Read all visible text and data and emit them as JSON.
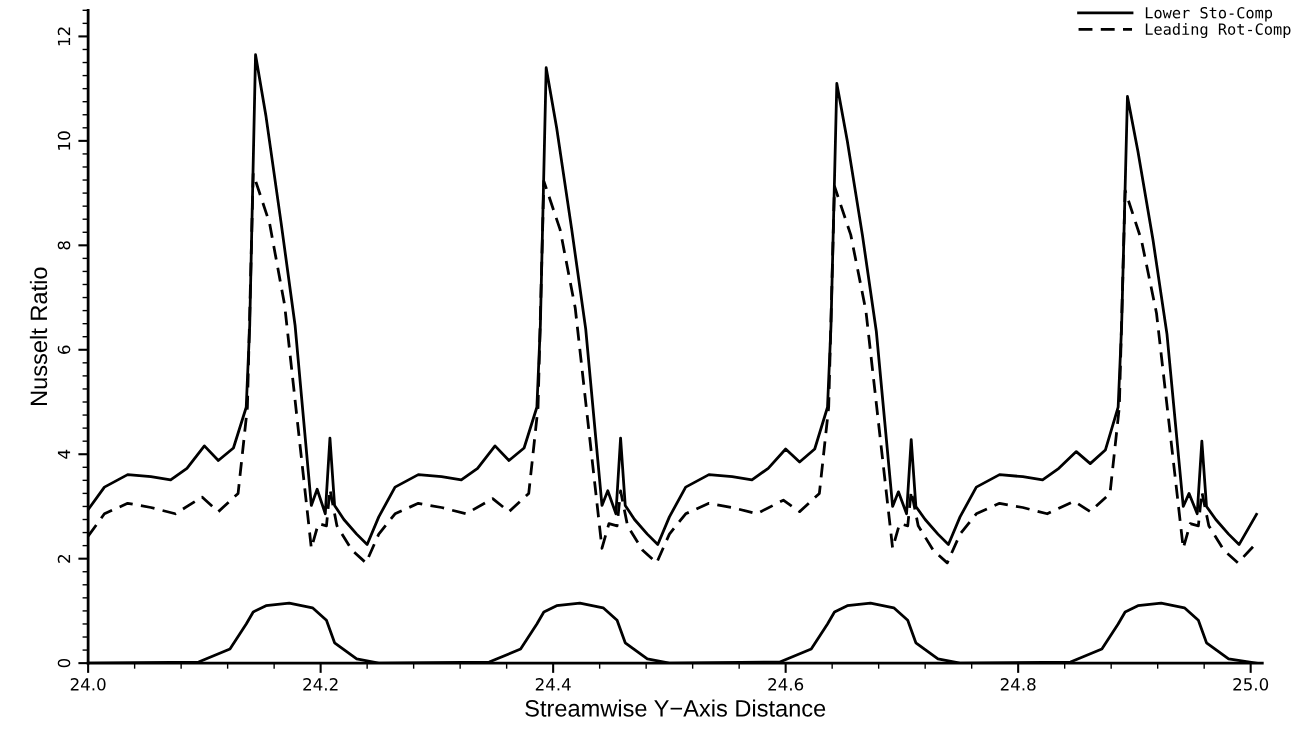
{
  "chart_data": {
    "type": "line",
    "xlabel": "Streamwise Y−Axis Distance",
    "ylabel": "Nusselt Ratio",
    "xlim": [
      24.0,
      25.01
    ],
    "xticks": [
      {
        "value": 24.0,
        "label": "24.0"
      },
      {
        "value": 24.2,
        "label": "24.2"
      },
      {
        "value": 24.4,
        "label": "24.4"
      },
      {
        "value": 24.6,
        "label": "24.6"
      },
      {
        "value": 24.8,
        "label": "24.8"
      },
      {
        "value": 25.0,
        "label": "25.0"
      }
    ],
    "ylim": [
      0,
      12.5
    ],
    "yticks": [
      0,
      2,
      4,
      6,
      8,
      10,
      12
    ],
    "grid": false,
    "legend": "top right",
    "marker": "none",
    "series": [
      {
        "name": "Lower Sto-Comp",
        "color": "#000000",
        "line_style": "solid",
        "x": [
          24.0,
          24.014,
          24.034,
          24.054,
          24.071,
          24.085,
          24.1,
          24.112,
          24.125,
          24.136,
          24.139,
          24.144,
          24.153,
          24.166,
          24.178,
          24.192,
          24.197,
          24.204,
          24.208,
          24.212,
          24.22,
          24.231,
          24.24,
          24.25,
          24.264,
          24.284,
          24.304,
          24.321,
          24.335,
          24.35,
          24.362,
          24.375,
          24.386,
          24.389,
          24.394,
          24.403,
          24.416,
          24.428,
          24.442,
          24.447,
          24.454,
          24.458,
          24.462,
          24.47,
          24.481,
          24.49,
          24.5,
          24.514,
          24.534,
          24.554,
          24.571,
          24.585,
          24.6,
          24.612,
          24.625,
          24.636,
          24.639,
          24.644,
          24.653,
          24.666,
          24.678,
          24.692,
          24.697,
          24.704,
          24.708,
          24.712,
          24.72,
          24.731,
          24.74,
          24.75,
          24.764,
          24.784,
          24.804,
          24.821,
          24.835,
          24.85,
          24.862,
          24.875,
          24.886,
          24.889,
          24.894,
          24.903,
          24.916,
          24.928,
          24.942,
          24.947,
          24.954,
          24.958,
          24.962,
          24.97,
          24.981,
          24.99,
          25.005
        ],
        "values": [
          2.94,
          3.37,
          3.61,
          3.57,
          3.51,
          3.73,
          4.16,
          3.88,
          4.12,
          4.9,
          6.47,
          11.65,
          10.47,
          8.43,
          6.47,
          3.02,
          3.33,
          2.86,
          4.31,
          3.02,
          2.75,
          2.47,
          2.27,
          2.8,
          3.37,
          3.61,
          3.57,
          3.51,
          3.73,
          4.16,
          3.88,
          4.12,
          4.9,
          6.47,
          11.4,
          10.25,
          8.3,
          6.4,
          3.02,
          3.3,
          2.86,
          4.31,
          3.02,
          2.75,
          2.47,
          2.27,
          2.8,
          3.37,
          3.61,
          3.57,
          3.51,
          3.73,
          4.1,
          3.85,
          4.1,
          4.9,
          6.47,
          11.1,
          10.0,
          8.2,
          6.35,
          3.0,
          3.28,
          2.86,
          4.28,
          3.0,
          2.75,
          2.47,
          2.27,
          2.8,
          3.37,
          3.61,
          3.57,
          3.51,
          3.73,
          4.05,
          3.82,
          4.08,
          4.9,
          6.47,
          10.85,
          9.8,
          8.1,
          6.3,
          3.0,
          3.25,
          2.86,
          4.25,
          3.0,
          2.75,
          2.47,
          2.27,
          2.85
        ]
      },
      {
        "name": "Leading Rot-Comp",
        "color": "#000000",
        "line_style": "dashed",
        "x": [
          24.0,
          24.014,
          24.034,
          24.054,
          24.075,
          24.098,
          24.112,
          24.129,
          24.137,
          24.142,
          24.156,
          24.169,
          24.192,
          24.198,
          24.205,
          24.208,
          24.214,
          24.227,
          24.239,
          24.25,
          24.264,
          24.284,
          24.304,
          24.325,
          24.348,
          24.362,
          24.379,
          24.387,
          24.392,
          24.406,
          24.419,
          24.442,
          24.448,
          24.455,
          24.458,
          24.464,
          24.477,
          24.489,
          24.5,
          24.514,
          24.534,
          24.554,
          24.575,
          24.598,
          24.612,
          24.629,
          24.637,
          24.642,
          24.656,
          24.669,
          24.692,
          24.698,
          24.705,
          24.708,
          24.714,
          24.727,
          24.739,
          24.75,
          24.764,
          24.784,
          24.804,
          24.825,
          24.848,
          24.862,
          24.879,
          24.887,
          24.892,
          24.906,
          24.919,
          24.942,
          24.948,
          24.955,
          24.958,
          24.964,
          24.977,
          24.989,
          25.005
        ],
        "values": [
          2.43,
          2.86,
          3.06,
          2.98,
          2.86,
          3.18,
          2.9,
          3.25,
          4.9,
          9.37,
          8.43,
          6.86,
          2.2,
          2.67,
          2.63,
          3.33,
          2.63,
          2.16,
          1.92,
          2.47,
          2.86,
          3.06,
          2.98,
          2.86,
          3.15,
          2.9,
          3.25,
          4.9,
          9.23,
          8.3,
          6.8,
          2.2,
          2.67,
          2.63,
          3.3,
          2.63,
          2.16,
          1.92,
          2.47,
          2.86,
          3.06,
          2.98,
          2.86,
          3.12,
          2.9,
          3.25,
          4.9,
          9.13,
          8.2,
          6.75,
          2.2,
          2.67,
          2.63,
          3.3,
          2.63,
          2.16,
          1.92,
          2.47,
          2.86,
          3.06,
          2.98,
          2.86,
          3.1,
          2.9,
          3.25,
          4.9,
          9.05,
          8.1,
          6.7,
          2.2,
          2.67,
          2.63,
          3.28,
          2.63,
          2.16,
          1.92,
          2.3
        ]
      },
      {
        "color": "#000000",
        "line_style": "solid",
        "x": [
          24.0,
          24.095,
          24.122,
          24.136,
          24.142,
          24.153,
          24.173,
          24.193,
          24.205,
          24.212,
          24.231,
          24.25,
          24.345,
          24.372,
          24.386,
          24.392,
          24.403,
          24.423,
          24.443,
          24.455,
          24.462,
          24.481,
          24.5,
          24.595,
          24.622,
          24.636,
          24.642,
          24.653,
          24.673,
          24.693,
          24.705,
          24.712,
          24.731,
          24.75,
          24.845,
          24.872,
          24.886,
          24.892,
          24.903,
          24.923,
          24.943,
          24.955,
          24.962,
          24.981,
          25.005
        ],
        "values": [
          0,
          0.02,
          0.27,
          0.75,
          0.98,
          1.1,
          1.15,
          1.06,
          0.82,
          0.39,
          0.08,
          0,
          0.02,
          0.27,
          0.75,
          0.98,
          1.1,
          1.15,
          1.06,
          0.82,
          0.39,
          0.08,
          0,
          0.02,
          0.27,
          0.75,
          0.98,
          1.1,
          1.15,
          1.06,
          0.82,
          0.39,
          0.08,
          0,
          0.02,
          0.27,
          0.75,
          0.98,
          1.1,
          1.15,
          1.06,
          0.82,
          0.39,
          0.08,
          0
        ]
      }
    ]
  }
}
